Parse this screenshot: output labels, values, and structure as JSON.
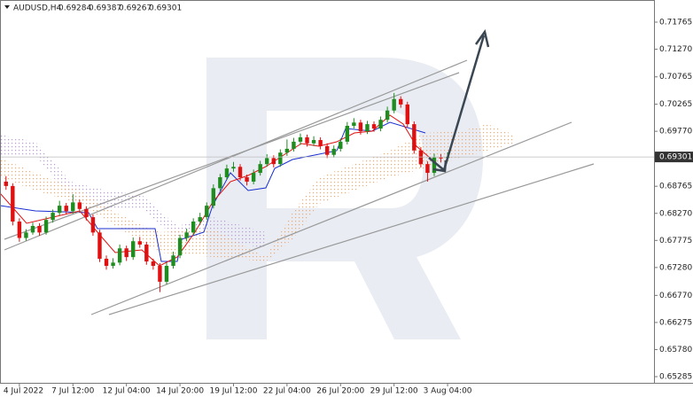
{
  "chart_data": {
    "type": "candlestick",
    "symbol": "AUDUSD,H4",
    "categories": [
      null,
      null,
      "4 Jul 2022",
      null,
      null,
      null,
      null,
      null,
      null,
      null,
      "7 Jul 12:00",
      null,
      null,
      null,
      null,
      null,
      null,
      null,
      "12 Jul 04:00",
      null,
      null,
      null,
      null,
      null,
      null,
      null,
      "14 Jul 20:00",
      null,
      null,
      null,
      null,
      null,
      null,
      null,
      "19 Jul 12:00",
      null,
      null,
      null,
      null,
      null,
      null,
      null,
      "22 Jul 04:00",
      null,
      null,
      null,
      null,
      null,
      null,
      null,
      "26 Jul 20:00",
      null,
      null,
      null,
      null,
      null,
      null,
      null,
      "29 Jul 12:00",
      null,
      null,
      null,
      null,
      null,
      null,
      null,
      "3 Aug 04:00"
    ],
    "open": [
      0.6885,
      0.6877,
      0.6812,
      0.6782,
      0.6792,
      0.6804,
      0.6792,
      0.6815,
      0.6828,
      0.6841,
      0.6831,
      0.6847,
      0.6835,
      0.682,
      0.6792,
      0.6744,
      0.6731,
      0.6737,
      0.6763,
      0.6747,
      0.6776,
      0.677,
      0.6739,
      0.6731,
      0.6702,
      0.6731,
      0.675,
      0.6782,
      0.6792,
      0.6812,
      0.682,
      0.6841,
      0.6873,
      0.6893,
      0.6909,
      0.6912,
      0.6893,
      0.6885,
      0.6901,
      0.6917,
      0.6928,
      0.6917,
      0.6938,
      0.6945,
      0.6958,
      0.6966,
      0.6955,
      0.6961,
      0.695,
      0.6934,
      0.6945,
      0.6958,
      0.6987,
      0.6993,
      0.6977,
      0.699,
      0.6982,
      0.6998,
      0.7015,
      0.7036,
      0.7026,
      0.699,
      0.6942,
      0.6917,
      0.6901,
      0.6929,
      0.69284
    ],
    "high": [
      0.6895,
      0.6882,
      0.6818,
      0.6798,
      0.681,
      0.6809,
      0.6821,
      0.6834,
      0.685,
      0.6846,
      0.6862,
      0.6852,
      0.684,
      0.6825,
      0.6797,
      0.675,
      0.6745,
      0.677,
      0.6768,
      0.6783,
      0.6784,
      0.6775,
      0.6744,
      0.6736,
      0.6737,
      0.6757,
      0.6788,
      0.6799,
      0.6818,
      0.6828,
      0.6847,
      0.688,
      0.6899,
      0.6916,
      0.6921,
      0.6917,
      0.6898,
      0.6907,
      0.6923,
      0.6935,
      0.6933,
      0.6944,
      0.6962,
      0.6965,
      0.6973,
      0.6971,
      0.6968,
      0.6966,
      0.6955,
      0.6951,
      0.6964,
      0.6994,
      0.7001,
      0.6998,
      0.6996,
      0.6995,
      0.7004,
      0.7022,
      0.7047,
      0.7041,
      0.7031,
      0.6995,
      0.6948,
      0.6922,
      0.6936,
      0.6935,
      0.69387
    ],
    "low": [
      0.687,
      0.6805,
      0.6775,
      0.6777,
      0.6788,
      0.6786,
      0.6788,
      0.681,
      0.6823,
      0.6825,
      0.6826,
      0.6829,
      0.6814,
      0.6786,
      0.6738,
      0.6724,
      0.6726,
      0.6732,
      0.674,
      0.6742,
      0.6764,
      0.6733,
      0.6724,
      0.6683,
      0.6697,
      0.6726,
      0.6745,
      0.6776,
      0.6787,
      0.6806,
      0.6815,
      0.6836,
      0.6868,
      0.6888,
      0.6903,
      0.6887,
      0.6878,
      0.688,
      0.6896,
      0.6912,
      0.6911,
      0.6912,
      0.6932,
      0.694,
      0.6952,
      0.6949,
      0.695,
      0.6944,
      0.6928,
      0.6929,
      0.694,
      0.6953,
      0.6982,
      0.6971,
      0.6972,
      0.6976,
      0.6977,
      0.6993,
      0.701,
      0.702,
      0.6984,
      0.6936,
      0.6911,
      0.6885,
      0.6895,
      0.692,
      0.69267
    ],
    "close": [
      0.6877,
      0.6812,
      0.6782,
      0.6792,
      0.6804,
      0.6792,
      0.6815,
      0.6828,
      0.6841,
      0.6831,
      0.6847,
      0.6835,
      0.682,
      0.6792,
      0.6744,
      0.6731,
      0.6737,
      0.6763,
      0.6747,
      0.6776,
      0.677,
      0.6739,
      0.6731,
      0.6702,
      0.6731,
      0.675,
      0.6782,
      0.6792,
      0.6812,
      0.682,
      0.6841,
      0.6873,
      0.6893,
      0.6909,
      0.6912,
      0.6893,
      0.6885,
      0.6901,
      0.6917,
      0.6928,
      0.6917,
      0.6938,
      0.6945,
      0.6958,
      0.6966,
      0.6955,
      0.6961,
      0.695,
      0.6934,
      0.6945,
      0.6958,
      0.6987,
      0.6993,
      0.6977,
      0.699,
      0.6982,
      0.6998,
      0.7015,
      0.7036,
      0.7026,
      0.699,
      0.6942,
      0.6917,
      0.6901,
      0.6929,
      0.6928,
      0.69301
    ],
    "up_color": "#1e8c1e",
    "down_color": "#e01010",
    "ylim": [
      0.65172,
      0.7217
    ],
    "yticks": [
      0.71765,
      {
        "value": 0.7127,
        "label": "0.71270"
      },
      0.70765,
      0.70265,
      {
        "value": 0.6977,
        "label": "0.69770"
      },
      0.68765,
      {
        "value": 0.6827,
        "label": "0.68270"
      },
      0.67775,
      {
        "value": 0.6728,
        "label": "0.67280"
      },
      {
        "value": 0.6677,
        "label": "0.66770"
      },
      0.66275,
      {
        "value": 0.6578,
        "label": "0.65780"
      },
      0.65285
    ],
    "grid": false
  }
}
